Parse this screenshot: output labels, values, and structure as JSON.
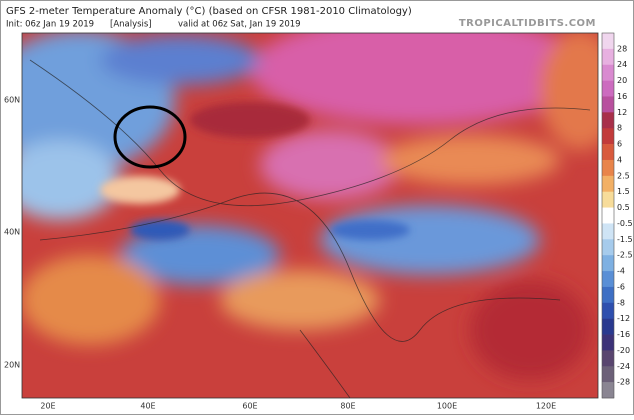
{
  "header": {
    "title": "GFS 2-meter Temperature Anomaly (°C) (based on CFSR 1981-2010 Climatology)",
    "init": "Init: 06z Jan 19 2019",
    "analysis": "[Analysis]",
    "valid": "valid at 06z Sat, Jan 19 2019",
    "source": "TROPICALTIDBITS.COM"
  },
  "map": {
    "lat_labels": [
      "60N",
      "40N",
      "20N"
    ],
    "lon_labels": [
      "20E",
      "40E",
      "60E",
      "80E",
      "100E",
      "120E"
    ]
  },
  "colorbar": {
    "labels": [
      28,
      24,
      20,
      16,
      12,
      8,
      6,
      4,
      2.5,
      1.5,
      0.5,
      -0.5,
      -1.5,
      -2.5,
      -4,
      -6,
      -8,
      -12,
      -16,
      -20,
      -24,
      -28
    ]
  }
}
